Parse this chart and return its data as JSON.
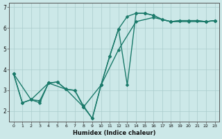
{
  "title": "",
  "xlabel": "Humidex (Indice chaleur)",
  "xlim": [
    -0.5,
    23.5
  ],
  "ylim": [
    1.5,
    7.2
  ],
  "bg_color": "#cce8e8",
  "grid_color": "#aacccc",
  "line_color": "#1a7a6a",
  "xticks": [
    0,
    1,
    2,
    3,
    4,
    5,
    6,
    7,
    8,
    9,
    10,
    11,
    12,
    13,
    14,
    15,
    16,
    17,
    18,
    19,
    20,
    21,
    22,
    23
  ],
  "yticks": [
    2,
    3,
    4,
    5,
    6,
    7
  ],
  "line1_x": [
    0,
    1,
    2,
    3,
    4,
    5,
    6,
    7,
    8,
    9,
    10,
    11,
    12,
    13,
    14,
    15,
    16,
    17,
    18,
    19,
    20,
    21,
    22,
    23
  ],
  "line1_y": [
    3.8,
    2.4,
    2.55,
    2.5,
    3.35,
    3.4,
    3.05,
    3.0,
    2.25,
    1.65,
    3.25,
    4.65,
    5.95,
    6.55,
    6.7,
    6.7,
    6.6,
    6.4,
    6.3,
    6.35,
    6.35,
    6.35,
    6.3,
    6.35
  ],
  "line2_x": [
    0,
    1,
    2,
    3,
    4,
    5,
    6,
    7,
    8,
    9,
    10,
    11,
    12,
    13,
    14,
    15,
    16,
    17,
    18,
    19,
    20,
    21,
    22,
    23
  ],
  "line2_y": [
    3.8,
    2.4,
    2.55,
    2.4,
    3.35,
    3.4,
    3.05,
    3.0,
    2.2,
    1.65,
    3.25,
    4.65,
    5.95,
    3.25,
    6.7,
    6.7,
    6.6,
    6.4,
    6.3,
    6.35,
    6.35,
    6.35,
    6.3,
    6.35
  ],
  "line3_x": [
    0,
    2,
    4,
    6,
    8,
    10,
    12,
    14,
    16,
    18,
    20,
    22,
    23
  ],
  "line3_y": [
    3.8,
    2.55,
    3.35,
    3.05,
    2.2,
    3.25,
    4.95,
    6.3,
    6.5,
    6.3,
    6.3,
    6.3,
    6.35
  ],
  "marker_size": 2.5,
  "line_width": 1.0
}
